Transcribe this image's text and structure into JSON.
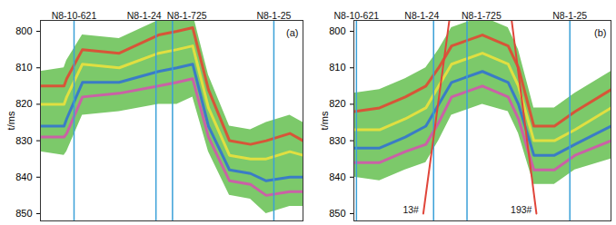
{
  "chart_data": [
    {
      "type": "area",
      "panel_label": "(a)",
      "y_label": "t/ms",
      "tick_labels": "y",
      "xlim": [
        0,
        100
      ],
      "ylim": [
        797,
        852
      ],
      "yticks": [
        800,
        810,
        820,
        830,
        840,
        850
      ],
      "x": [
        0,
        9,
        10,
        16,
        30,
        45,
        52,
        58,
        64,
        72,
        80,
        86,
        95,
        100
      ],
      "band": {
        "color": "#7cc96a",
        "top": [
          811,
          810,
          808,
          801,
          802,
          797,
          796,
          795,
          812,
          826,
          827,
          825,
          823,
          825
        ],
        "bottom": [
          833,
          834,
          833,
          823,
          822,
          820,
          820,
          818,
          833,
          845,
          846,
          850,
          848,
          848
        ]
      },
      "horizons": [
        {
          "color": "#e8412f",
          "values": [
            815,
            815,
            813,
            805,
            806,
            801,
            800,
            799,
            816,
            830,
            831,
            830,
            828,
            830
          ]
        },
        {
          "color": "#f2e33a",
          "values": [
            820,
            820,
            818,
            809,
            810,
            806,
            805,
            804,
            821,
            834,
            835,
            835,
            833,
            834
          ]
        },
        {
          "color": "#2f6fd6",
          "values": [
            826,
            826,
            824,
            814,
            814,
            811,
            810,
            809,
            826,
            838,
            839,
            841,
            840,
            840
          ]
        },
        {
          "color": "#d84fb0",
          "values": [
            829,
            829,
            828,
            818,
            817,
            815,
            814,
            813,
            829,
            841,
            842,
            845,
            844,
            844
          ]
        }
      ],
      "wells": {
        "color": "#3aa0d8",
        "items": [
          {
            "label": "N8-10-621",
            "x": 12.8
          },
          {
            "label": "N8-1-24",
            "x": 44
          },
          {
            "label": "N8-1-725",
            "x": 50.3
          },
          {
            "label": "N8-1-25",
            "x": 88.9
          }
        ]
      },
      "faults": {
        "color": "#e0453a",
        "items": []
      }
    },
    {
      "type": "area",
      "panel_label": "(b)",
      "y_label": "t/ms",
      "tick_labels": "y",
      "xlim": [
        0,
        100
      ],
      "ylim": [
        797,
        852
      ],
      "yticks": [
        800,
        810,
        820,
        830,
        840,
        850
      ],
      "x": [
        0,
        10,
        20,
        28,
        33,
        38,
        50,
        60,
        64,
        70,
        78,
        86,
        100
      ],
      "band": {
        "color": "#7cc96a",
        "top": [
          817,
          816,
          813,
          810,
          805,
          799,
          796,
          799,
          805,
          821,
          821,
          817,
          811
        ],
        "bottom": [
          840,
          841,
          838,
          836,
          830,
          823,
          820,
          822,
          828,
          842,
          842,
          838,
          835
        ]
      },
      "horizons": [
        {
          "color": "#e8412f",
          "values": [
            822,
            821,
            818,
            815,
            810,
            804,
            801,
            804,
            810,
            826,
            826,
            822,
            816
          ]
        },
        {
          "color": "#f2e33a",
          "values": [
            827,
            827,
            824,
            821,
            815,
            809,
            806,
            809,
            815,
            830,
            830,
            827,
            821
          ]
        },
        {
          "color": "#2f6fd6",
          "values": [
            832,
            832,
            829,
            826,
            820,
            814,
            811,
            814,
            820,
            834,
            834,
            831,
            826
          ]
        },
        {
          "color": "#d84fb0",
          "values": [
            836,
            836,
            833,
            831,
            825,
            818,
            815,
            818,
            824,
            838,
            838,
            834,
            830
          ]
        }
      ],
      "wells": {
        "color": "#3aa0d8",
        "items": [
          {
            "label": "N8-10-621",
            "x": 1
          },
          {
            "label": "N8-1-24",
            "x": 31
          },
          {
            "label": "N8-1-725",
            "x": 44
          },
          {
            "label": "N8-1-25",
            "x": 84
          }
        ]
      },
      "faults": {
        "color": "#e0453a",
        "items": [
          {
            "label": "13#",
            "x": [
              27,
              37.5
            ],
            "y": [
              850,
              795
            ]
          },
          {
            "label": "193#",
            "x": [
              71,
              61
            ],
            "y": [
              850,
              795
            ]
          }
        ]
      }
    }
  ]
}
